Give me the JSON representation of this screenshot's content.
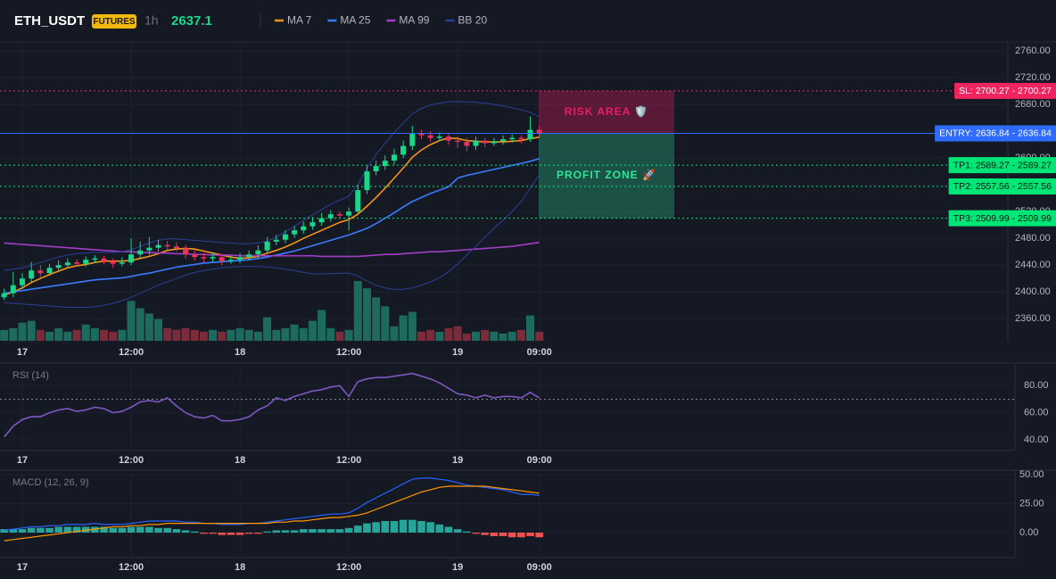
{
  "chart_data": [
    {
      "type": "candlestick",
      "title": "ETH_USDT",
      "badge": "FUTURES",
      "interval": "1h",
      "grid": true,
      "categories": [
        null,
        null,
        "17",
        null,
        null,
        null,
        null,
        null,
        null,
        null,
        null,
        null,
        null,
        null,
        "12:00",
        null,
        null,
        null,
        null,
        null,
        null,
        null,
        null,
        null,
        null,
        null,
        "18",
        null,
        null,
        null,
        null,
        null,
        null,
        null,
        null,
        null,
        null,
        null,
        "12:00",
        null,
        null,
        null,
        null,
        null,
        null,
        null,
        null,
        null,
        null,
        null,
        "19",
        null,
        null,
        null,
        null,
        null,
        null,
        null,
        null,
        "09:00"
      ],
      "open": [
        2392,
        2398,
        2410,
        2420,
        2432,
        2428,
        2436,
        2440,
        2444,
        2442,
        2448,
        2450,
        2446,
        2442,
        2444,
        2456,
        2462,
        2466,
        2470,
        2468,
        2465,
        2456,
        2452,
        2450,
        2452,
        2446,
        2448,
        2452,
        2456,
        2462,
        2475,
        2478,
        2486,
        2492,
        2498,
        2504,
        2510,
        2516,
        2514,
        2520,
        2552,
        2580,
        2588,
        2596,
        2605,
        2618,
        2636,
        2634,
        2630,
        2632,
        2626,
        2624,
        2618,
        2626,
        2622,
        2625,
        2628,
        2630,
        2628,
        2642
      ],
      "high": [
        2405,
        2430,
        2428,
        2445,
        2440,
        2442,
        2447,
        2450,
        2449,
        2453,
        2455,
        2454,
        2450,
        2452,
        2480,
        2475,
        2482,
        2478,
        2476,
        2474,
        2470,
        2462,
        2458,
        2458,
        2457,
        2454,
        2458,
        2462,
        2470,
        2482,
        2485,
        2492,
        2498,
        2505,
        2512,
        2518,
        2522,
        2520,
        2526,
        2560,
        2590,
        2596,
        2604,
        2614,
        2626,
        2648,
        2642,
        2640,
        2638,
        2636,
        2632,
        2630,
        2632,
        2630,
        2630,
        2634,
        2635,
        2634,
        2662,
        2648
      ],
      "low": [
        2388,
        2392,
        2404,
        2415,
        2422,
        2424,
        2430,
        2436,
        2438,
        2438,
        2443,
        2441,
        2436,
        2438,
        2440,
        2450,
        2455,
        2460,
        2462,
        2460,
        2450,
        2447,
        2444,
        2445,
        2440,
        2442,
        2443,
        2447,
        2451,
        2458,
        2470,
        2473,
        2481,
        2487,
        2493,
        2499,
        2505,
        2509,
        2492,
        2515,
        2546,
        2574,
        2582,
        2590,
        2600,
        2612,
        2628,
        2624,
        2625,
        2620,
        2615,
        2610,
        2612,
        2616,
        2618,
        2620,
        2623,
        2622,
        2624,
        2632
      ],
      "close": [
        2398,
        2410,
        2420,
        2432,
        2428,
        2436,
        2440,
        2444,
        2442,
        2448,
        2450,
        2446,
        2442,
        2444,
        2456,
        2462,
        2466,
        2470,
        2468,
        2465,
        2456,
        2452,
        2450,
        2452,
        2446,
        2448,
        2452,
        2456,
        2462,
        2475,
        2478,
        2486,
        2492,
        2498,
        2504,
        2510,
        2516,
        2514,
        2520,
        2552,
        2580,
        2588,
        2596,
        2605,
        2618,
        2636,
        2634,
        2630,
        2632,
        2626,
        2624,
        2618,
        2626,
        2622,
        2625,
        2628,
        2630,
        2628,
        2642,
        2637.1
      ],
      "volume": [
        12,
        14,
        20,
        22,
        12,
        10,
        14,
        10,
        12,
        18,
        14,
        12,
        10,
        12,
        44,
        36,
        30,
        24,
        14,
        12,
        14,
        12,
        10,
        12,
        10,
        12,
        14,
        12,
        10,
        26,
        12,
        14,
        18,
        14,
        22,
        34,
        14,
        10,
        12,
        66,
        58,
        48,
        38,
        16,
        28,
        32,
        10,
        12,
        10,
        14,
        16,
        8,
        10,
        12,
        10,
        8,
        10,
        12,
        28,
        10
      ],
      "colors": {
        "up": "#17d889",
        "down": "#e8345a",
        "volume_up": "#1d6b5f",
        "volume_down": "#7b2c3a"
      },
      "series": [
        {
          "name": "MA 7",
          "color": "#f7931a",
          "values": [
            2395,
            2400,
            2406,
            2414,
            2420,
            2426,
            2431,
            2436,
            2439,
            2441,
            2444,
            2446,
            2446,
            2446,
            2447,
            2450,
            2453,
            2457,
            2462,
            2464,
            2465,
            2464,
            2461,
            2458,
            2455,
            2452,
            2450,
            2451,
            2453,
            2458,
            2462,
            2467,
            2473,
            2480,
            2486,
            2492,
            2498,
            2504,
            2508,
            2516,
            2528,
            2541,
            2555,
            2570,
            2585,
            2601,
            2612,
            2620,
            2626,
            2630,
            2629,
            2626,
            2625,
            2624,
            2624,
            2624,
            2625,
            2626,
            2629,
            2631
          ]
        },
        {
          "name": "MA 25",
          "color": "#3b7bff",
          "values": [
            2398,
            2400,
            2402,
            2404,
            2406,
            2408,
            2410,
            2412,
            2414,
            2416,
            2418,
            2419,
            2420,
            2421,
            2423,
            2426,
            2428,
            2431,
            2434,
            2437,
            2439,
            2441,
            2443,
            2444,
            2445,
            2446,
            2447,
            2448,
            2450,
            2452,
            2455,
            2458,
            2461,
            2465,
            2469,
            2473,
            2477,
            2481,
            2485,
            2490,
            2495,
            2502,
            2510,
            2518,
            2527,
            2535,
            2541,
            2547,
            2552,
            2557,
            2570,
            2574,
            2577,
            2580,
            2583,
            2586,
            2589,
            2592,
            2595,
            2599
          ]
        },
        {
          "name": "MA 99",
          "color": "#a23cc4",
          "values": [
            2473,
            2472,
            2471,
            2470,
            2469,
            2468,
            2467,
            2466,
            2465,
            2464,
            2463,
            2462,
            2461,
            2460,
            2460,
            2459,
            2459,
            2458,
            2458,
            2457,
            2457,
            2456,
            2456,
            2455,
            2455,
            2455,
            2454,
            2454,
            2454,
            2454,
            2454,
            2454,
            2454,
            2454,
            2454,
            2453,
            2453,
            2453,
            2453,
            2453,
            2454,
            2455,
            2456,
            2456,
            2457,
            2458,
            2459,
            2460,
            2460,
            2461,
            2462,
            2463,
            2464,
            2465,
            2466,
            2467,
            2468,
            2470,
            2472,
            2474
          ]
        },
        {
          "name": "BB 20",
          "color": "#2a4196",
          "values": [
            2432,
            2434,
            2436,
            2440,
            2444,
            2448,
            2452,
            2455,
            2457,
            2458,
            2459,
            2459,
            2459,
            2460,
            2463,
            2468,
            2473,
            2477,
            2479,
            2479,
            2478,
            2477,
            2476,
            2475,
            2474,
            2473,
            2472,
            2472,
            2473,
            2476,
            2482,
            2490,
            2498,
            2507,
            2515,
            2523,
            2531,
            2537,
            2543,
            2560,
            2585,
            2605,
            2622,
            2638,
            2652,
            2666,
            2674,
            2679,
            2682,
            2684,
            2684,
            2684,
            2683,
            2682,
            2680,
            2678,
            2675,
            2672,
            2668,
            2662
          ],
          "lower": [
            2384,
            2383,
            2382,
            2381,
            2380,
            2379,
            2378,
            2377,
            2377,
            2377,
            2378,
            2380,
            2383,
            2387,
            2392,
            2398,
            2404,
            2410,
            2415,
            2420,
            2425,
            2429,
            2432,
            2434,
            2436,
            2437,
            2438,
            2438,
            2438,
            2437,
            2436,
            2434,
            2432,
            2429,
            2427,
            2427,
            2427,
            2428,
            2428,
            2424,
            2416,
            2410,
            2406,
            2404,
            2404,
            2406,
            2410,
            2415,
            2421,
            2430,
            2442,
            2455,
            2468,
            2482,
            2495,
            2507,
            2520,
            2535,
            2555,
            2575
          ]
        }
      ],
      "ylim": [
        2327,
        2772
      ],
      "yticks": [
        {
          "value": 2360,
          "label": "2360.00"
        },
        {
          "value": 2400,
          "label": "2400.00"
        },
        {
          "value": 2440,
          "label": "2440.00"
        },
        {
          "value": 2480,
          "label": "2480.00"
        },
        {
          "value": 2520,
          "label": "2520.00"
        },
        {
          "value": 2560,
          "label": "2560.00"
        },
        {
          "value": 2600,
          "label": "2600.00"
        },
        {
          "value": 2640,
          "label": "2640.00"
        },
        {
          "value": 2680,
          "label": "2680.00"
        },
        {
          "value": 2720,
          "label": "2720.00"
        },
        {
          "value": 2760,
          "label": "2760.00"
        }
      ],
      "levels": [
        {
          "label": "SL: 2700.27 - 2700.27",
          "value": 2700.27,
          "color": "#f0245f",
          "text_color": "#ffffff",
          "style": "dotted"
        },
        {
          "label": "ENTRY: 2636.84 - 2636.84",
          "value": 2636.84,
          "color": "#2f6bff",
          "text_color": "#ffffff",
          "style": "solid"
        },
        {
          "label": "TP1: 2589.27 - 2589.27",
          "value": 2589.27,
          "color": "#00e676",
          "text_color": "#0b1a12",
          "style": "dotted"
        },
        {
          "label": "TP2: 2557.56 - 2557.56",
          "value": 2557.56,
          "color": "#00e676",
          "text_color": "#0b1a12",
          "style": "dotted"
        },
        {
          "label": "TP3: 2509.99 - 2509.99",
          "value": 2509.99,
          "color": "#00e676",
          "text_color": "#0b1a12",
          "style": "dotted"
        }
      ],
      "zones": [
        {
          "label": "RISK AREA 🛡️",
          "color": "#e91e63"
        },
        {
          "label": "PROFIT ZONE 🚀",
          "color": "#2ee59d"
        }
      ]
    },
    {
      "type": "line",
      "title": "RSI (14)",
      "grid": true,
      "series": [
        {
          "color": "#7e57c2",
          "values": [
            42,
            50,
            55,
            57,
            57,
            60,
            62,
            63,
            61,
            62,
            64,
            63,
            60,
            61,
            64,
            68,
            69,
            68,
            71,
            65,
            60,
            57,
            56,
            58,
            54,
            54,
            55,
            57,
            62,
            65,
            71,
            69,
            72,
            74,
            76,
            77,
            79,
            80,
            72,
            83,
            85,
            86,
            86,
            87,
            88,
            89,
            87,
            85,
            82,
            78,
            74,
            73,
            71,
            73,
            71,
            72,
            72,
            71,
            75,
            71
          ]
        }
      ],
      "reference_line": 70,
      "ylim": [
        32,
        94.7
      ],
      "yticks": [
        {
          "value": 40,
          "label": "40.00"
        },
        {
          "value": 60,
          "label": "60.00"
        },
        {
          "value": 80,
          "label": "80.00"
        }
      ]
    },
    {
      "type": "macd",
      "title": "MACD (12, 26, 9)",
      "grid": true,
      "series": [
        {
          "color": "#2962ff",
          "values": [
            2,
            3,
            4,
            5,
            5,
            6,
            6,
            7,
            7,
            7,
            8,
            7,
            7,
            7,
            8,
            9,
            10,
            10,
            10,
            10,
            9,
            9,
            8,
            8,
            7,
            7,
            7,
            8,
            8,
            9,
            10,
            11,
            12,
            13,
            14,
            15,
            16,
            16,
            17,
            21,
            26,
            30,
            34,
            38,
            42,
            46,
            47,
            47,
            46,
            45,
            43,
            41,
            40,
            39,
            38,
            37,
            35,
            33,
            33,
            32
          ]
        },
        {
          "color": "#ff9800",
          "values": [
            -7,
            -6,
            -5,
            -4,
            -3,
            -2,
            -1,
            0,
            1,
            2,
            3,
            4,
            5,
            5,
            6,
            6,
            7,
            7,
            8,
            8,
            8,
            8,
            8,
            8,
            8,
            8,
            8,
            8,
            8,
            8,
            9,
            9,
            10,
            10,
            11,
            12,
            13,
            13,
            14,
            15,
            17,
            20,
            23,
            26,
            29,
            32,
            35,
            37,
            39,
            40,
            40,
            40,
            40,
            40,
            39,
            38,
            37,
            36,
            35,
            34
          ]
        }
      ],
      "hist": [
        3,
        3,
        3,
        4,
        4,
        4,
        5,
        5,
        5,
        5,
        5,
        5,
        4,
        4,
        5,
        5,
        5,
        4,
        4,
        3,
        2,
        1,
        -1,
        -1,
        -2,
        -2,
        -2,
        -1,
        -1,
        1,
        2,
        2,
        2,
        3,
        3,
        3,
        3,
        3,
        4,
        6,
        8,
        9,
        10,
        10,
        11,
        11,
        10,
        9,
        7,
        5,
        3,
        1,
        -1,
        -2,
        -3,
        -3,
        -4,
        -4,
        -3,
        -4
      ],
      "hist_colors": {
        "up": "#26a69a",
        "down": "#ef5350"
      },
      "ylim": [
        -21.5,
        51.5
      ],
      "yticks": [
        {
          "value": 0,
          "label": "0.00"
        },
        {
          "value": 25,
          "label": "25.00"
        },
        {
          "value": 50,
          "label": "50.00"
        }
      ]
    }
  ]
}
